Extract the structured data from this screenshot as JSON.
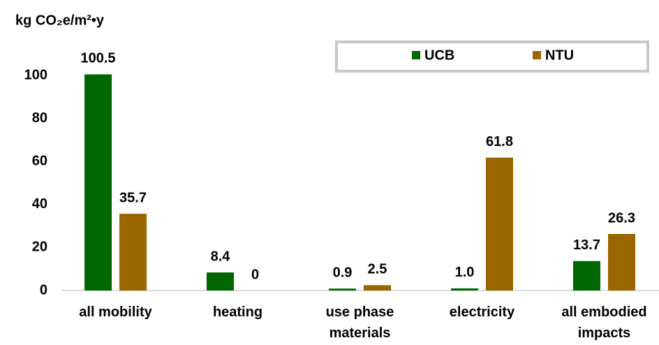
{
  "chart_data": {
    "type": "bar",
    "ylabel": "kg CO₂e/m²•y",
    "categories": [
      "all mobility",
      "heating",
      "use phase\nmaterials",
      "electricity",
      "all embodied\nimpacts"
    ],
    "series": [
      {
        "name": "UCB",
        "color": "#006600",
        "values": [
          100.5,
          8.4,
          0.9,
          1.0,
          13.7
        ],
        "value_labels": [
          "100.5",
          "8.4",
          "0.9",
          "1.0",
          "13.7"
        ]
      },
      {
        "name": "NTU",
        "color": "#996600",
        "values": [
          35.7,
          0,
          2.5,
          61.8,
          26.3
        ]
      }
    ],
    "ylim": [
      0,
      100
    ],
    "yticks": [
      0,
      20,
      40,
      60,
      80,
      100
    ],
    "grid": false,
    "legend": "top-right"
  }
}
